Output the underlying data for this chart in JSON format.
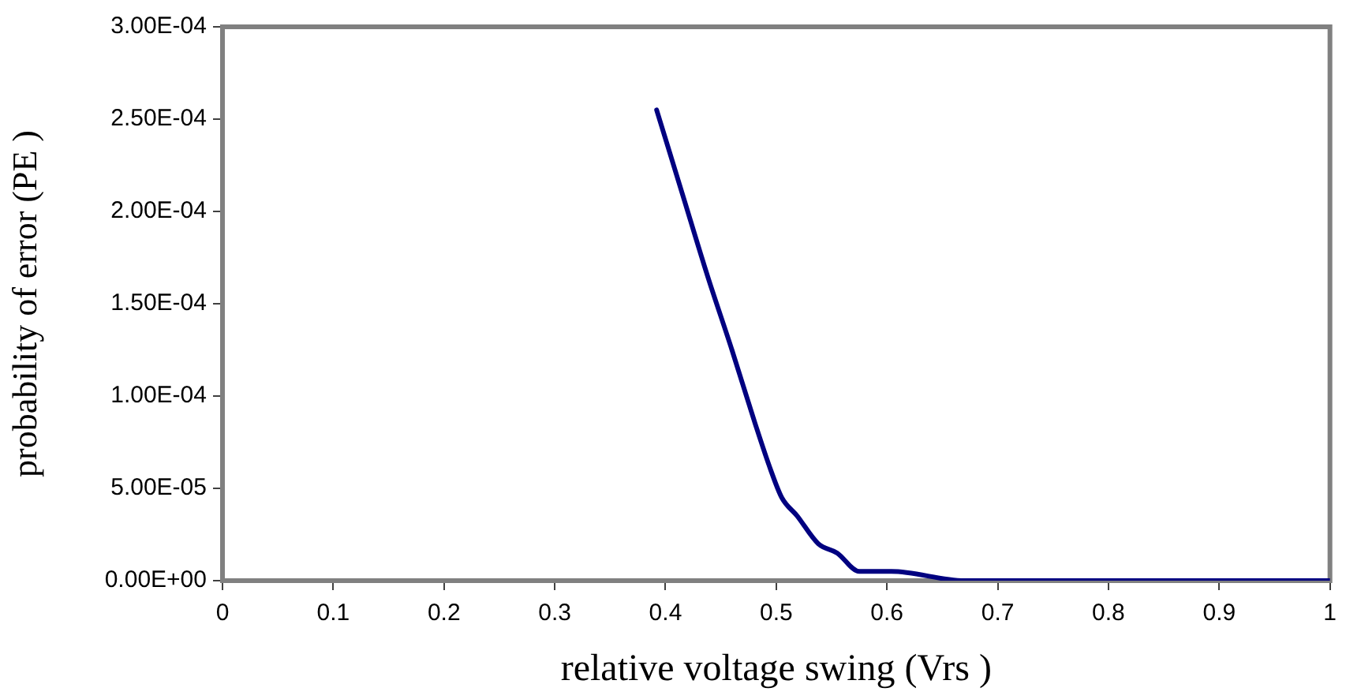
{
  "chart_data": {
    "type": "line",
    "xlabel": "relative voltage swing (Vrs )",
    "ylabel": "probability of error (PE )",
    "x": [
      0.392,
      0.415,
      0.438,
      0.46,
      0.481,
      0.495,
      0.505,
      0.519,
      0.538,
      0.555,
      0.575,
      0.604,
      0.67,
      0.75,
      0.85,
      1
    ],
    "series": [
      {
        "color": "#000080",
        "values": [
          0.000255,
          0.00021,
          0.000165,
          0.000125,
          8.5e-05,
          6e-05,
          4.5e-05,
          3.5e-05,
          2e-05,
          1.5e-05,
          5e-06,
          5e-06,
          0,
          0,
          0,
          0
        ]
      }
    ],
    "xlim": [
      0,
      1
    ],
    "xticks": [
      0,
      0.1,
      0.2,
      0.3,
      0.4,
      0.5,
      0.6,
      0.7,
      0.8,
      0.9,
      1
    ],
    "ylim": [
      0,
      0.0003
    ],
    "yticks": [
      {
        "value": 0,
        "label": "0.00E+00"
      },
      {
        "value": 5e-05,
        "label": "5.00E-05"
      },
      {
        "value": 0.0001,
        "label": "1.00E-04"
      },
      {
        "value": 0.00015,
        "label": "1.50E-04"
      },
      {
        "value": 0.0002,
        "label": "2.00E-04"
      },
      {
        "value": 0.00025,
        "label": "2.50E-04"
      },
      {
        "value": 0.0003,
        "label": "3.00E-04"
      }
    ],
    "grid": false,
    "legend": false,
    "marker": "none",
    "line_style": "solid"
  }
}
